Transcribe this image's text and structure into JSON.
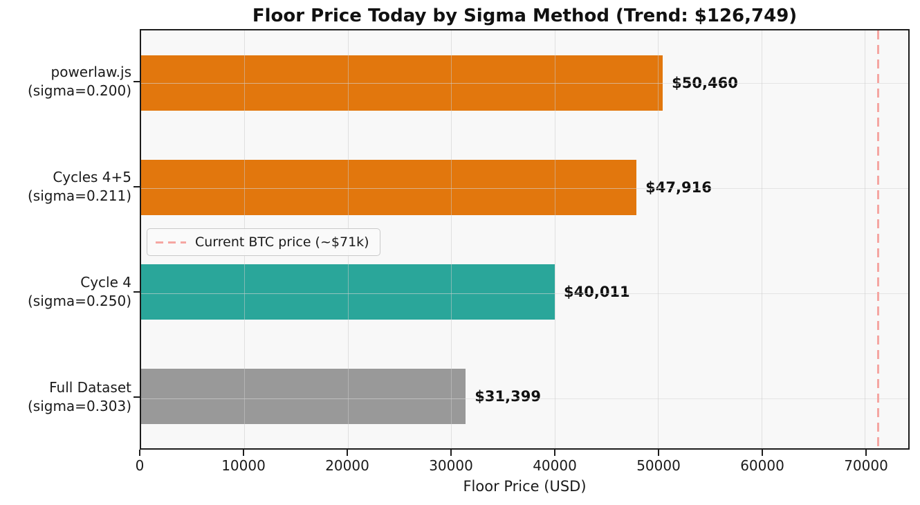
{
  "chart_data": {
    "type": "bar",
    "orientation": "horizontal",
    "title": "Floor Price Today by Sigma Method (Trend: $126,749)",
    "xlabel": "Floor Price (USD)",
    "xlim": [
      0,
      74200
    ],
    "x_ticks": [
      0,
      10000,
      20000,
      30000,
      40000,
      50000,
      60000,
      70000
    ],
    "x_tick_labels": [
      "0",
      "10000",
      "20000",
      "30000",
      "40000",
      "50000",
      "60000",
      "70000"
    ],
    "categories": [
      {
        "line1": "powerlaw.js",
        "line2": "(sigma=0.200)"
      },
      {
        "line1": "Cycles 4+5",
        "line2": "(sigma=0.211)"
      },
      {
        "line1": "Cycle 4",
        "line2": "(sigma=0.250)"
      },
      {
        "line1": "Full Dataset",
        "line2": "(sigma=0.303)"
      }
    ],
    "values": [
      50460,
      47916,
      40011,
      31399
    ],
    "value_labels": [
      "$50,460",
      "$47,916",
      "$40,011",
      "$31,399"
    ],
    "bar_colors": [
      "#e2770d",
      "#e2770d",
      "#2aa69a",
      "#999999"
    ],
    "trend_line": {
      "value": 71000,
      "label": "Current BTC price (~$71k)",
      "color": "#f5a6a2",
      "style": "dashed"
    },
    "trend_value_in_title": "$126,749",
    "grid": true,
    "legend_position": "center-left",
    "plot_bg": "#f8f8f8",
    "grid_color": "#cbcbcb",
    "spine_color": "#1c1c1c"
  }
}
